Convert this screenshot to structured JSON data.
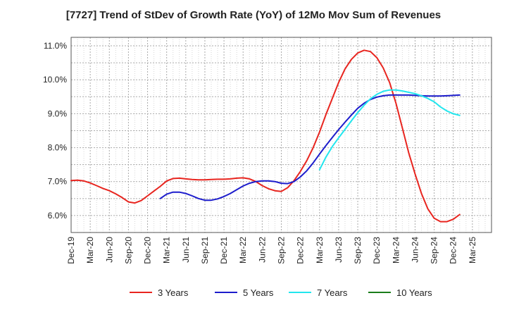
{
  "chart_data": {
    "type": "line",
    "title": "[7727]  Trend of StDev of Growth Rate (YoY) of 12Mo Mov Sum of Revenues",
    "xlabel": "",
    "ylabel": "",
    "ylim": [
      5.5,
      11.25
    ],
    "grid": true,
    "legend_position": "bottom",
    "y_ticks": [
      6.0,
      7.0,
      8.0,
      9.0,
      10.0,
      11.0
    ],
    "y_tick_labels": [
      "6.0%",
      "7.0%",
      "8.0%",
      "9.0%",
      "10.0%",
      "11.0%"
    ],
    "x_tick_labels": [
      "Dec-19",
      "Mar-20",
      "Jun-20",
      "Sep-20",
      "Dec-20",
      "Mar-21",
      "Jun-21",
      "Sep-21",
      "Dec-21",
      "Mar-22",
      "Jun-22",
      "Sep-22",
      "Dec-22",
      "Mar-23",
      "Jun-23",
      "Sep-23",
      "Dec-23",
      "Mar-24",
      "Jun-24",
      "Sep-24",
      "Dec-24",
      "Mar-25"
    ],
    "x_unit": "months since Dec-19",
    "series": [
      {
        "name": "3 Years",
        "color": "#e8251f",
        "points": [
          [
            0,
            7.03
          ],
          [
            1,
            7.04
          ],
          [
            2,
            7.02
          ],
          [
            3,
            6.96
          ],
          [
            4,
            6.88
          ],
          [
            5,
            6.8
          ],
          [
            6,
            6.73
          ],
          [
            7,
            6.64
          ],
          [
            8,
            6.53
          ],
          [
            9,
            6.4
          ],
          [
            10,
            6.37
          ],
          [
            11,
            6.44
          ],
          [
            12,
            6.58
          ],
          [
            13,
            6.72
          ],
          [
            14,
            6.86
          ],
          [
            15,
            7.02
          ],
          [
            16,
            7.09
          ],
          [
            17,
            7.1
          ],
          [
            18,
            7.08
          ],
          [
            19,
            7.06
          ],
          [
            20,
            7.05
          ],
          [
            21,
            7.05
          ],
          [
            22,
            7.06
          ],
          [
            23,
            7.07
          ],
          [
            24,
            7.07
          ],
          [
            25,
            7.08
          ],
          [
            26,
            7.1
          ],
          [
            27,
            7.11
          ],
          [
            28,
            7.08
          ],
          [
            29,
            7.0
          ],
          [
            30,
            6.88
          ],
          [
            31,
            6.79
          ],
          [
            32,
            6.73
          ],
          [
            33,
            6.71
          ],
          [
            34,
            6.82
          ],
          [
            35,
            7.03
          ],
          [
            36,
            7.3
          ],
          [
            37,
            7.62
          ],
          [
            38,
            8.0
          ],
          [
            39,
            8.46
          ],
          [
            40,
            8.97
          ],
          [
            41,
            9.45
          ],
          [
            42,
            9.92
          ],
          [
            43,
            10.32
          ],
          [
            44,
            10.6
          ],
          [
            45,
            10.79
          ],
          [
            46,
            10.87
          ],
          [
            47,
            10.83
          ],
          [
            48,
            10.65
          ],
          [
            49,
            10.35
          ],
          [
            50,
            9.92
          ],
          [
            51,
            9.31
          ],
          [
            52,
            8.58
          ],
          [
            53,
            7.85
          ],
          [
            54,
            7.22
          ],
          [
            55,
            6.65
          ],
          [
            56,
            6.2
          ],
          [
            57,
            5.92
          ],
          [
            58,
            5.82
          ],
          [
            59,
            5.82
          ],
          [
            60,
            5.89
          ],
          [
            61,
            6.03
          ]
        ]
      },
      {
        "name": "5 Years",
        "color": "#1c1ccc",
        "points": [
          [
            14,
            6.5
          ],
          [
            15,
            6.63
          ],
          [
            16,
            6.69
          ],
          [
            17,
            6.69
          ],
          [
            18,
            6.65
          ],
          [
            19,
            6.58
          ],
          [
            20,
            6.5
          ],
          [
            21,
            6.45
          ],
          [
            22,
            6.45
          ],
          [
            23,
            6.49
          ],
          [
            24,
            6.56
          ],
          [
            25,
            6.65
          ],
          [
            26,
            6.76
          ],
          [
            27,
            6.87
          ],
          [
            28,
            6.95
          ],
          [
            29,
            7.0
          ],
          [
            30,
            7.02
          ],
          [
            31,
            7.02
          ],
          [
            32,
            7.0
          ],
          [
            33,
            6.95
          ],
          [
            34,
            6.94
          ],
          [
            35,
            7.0
          ],
          [
            36,
            7.14
          ],
          [
            37,
            7.32
          ],
          [
            38,
            7.55
          ],
          [
            39,
            7.81
          ],
          [
            40,
            8.06
          ],
          [
            41,
            8.3
          ],
          [
            42,
            8.53
          ],
          [
            43,
            8.75
          ],
          [
            44,
            8.96
          ],
          [
            45,
            9.16
          ],
          [
            46,
            9.31
          ],
          [
            47,
            9.42
          ],
          [
            48,
            9.49
          ],
          [
            49,
            9.53
          ],
          [
            50,
            9.55
          ],
          [
            51,
            9.55
          ],
          [
            52,
            9.55
          ],
          [
            53,
            9.55
          ],
          [
            54,
            9.54
          ],
          [
            55,
            9.53
          ],
          [
            56,
            9.52
          ],
          [
            57,
            9.52
          ],
          [
            58,
            9.52
          ],
          [
            59,
            9.53
          ],
          [
            60,
            9.54
          ],
          [
            61,
            9.55
          ]
        ]
      },
      {
        "name": "7 Years",
        "color": "#22e6ee",
        "points": [
          [
            39,
            7.35
          ],
          [
            40,
            7.72
          ],
          [
            41,
            8.03
          ],
          [
            42,
            8.29
          ],
          [
            43,
            8.54
          ],
          [
            44,
            8.79
          ],
          [
            45,
            9.03
          ],
          [
            46,
            9.25
          ],
          [
            47,
            9.44
          ],
          [
            48,
            9.57
          ],
          [
            49,
            9.66
          ],
          [
            50,
            9.7
          ],
          [
            51,
            9.7
          ],
          [
            52,
            9.67
          ],
          [
            53,
            9.63
          ],
          [
            54,
            9.59
          ],
          [
            55,
            9.53
          ],
          [
            56,
            9.45
          ],
          [
            57,
            9.35
          ],
          [
            58,
            9.2
          ],
          [
            59,
            9.08
          ],
          [
            60,
            9.0
          ],
          [
            61,
            8.95
          ]
        ]
      },
      {
        "name": "10 Years",
        "color": "#1a7d1a",
        "points": []
      }
    ]
  }
}
